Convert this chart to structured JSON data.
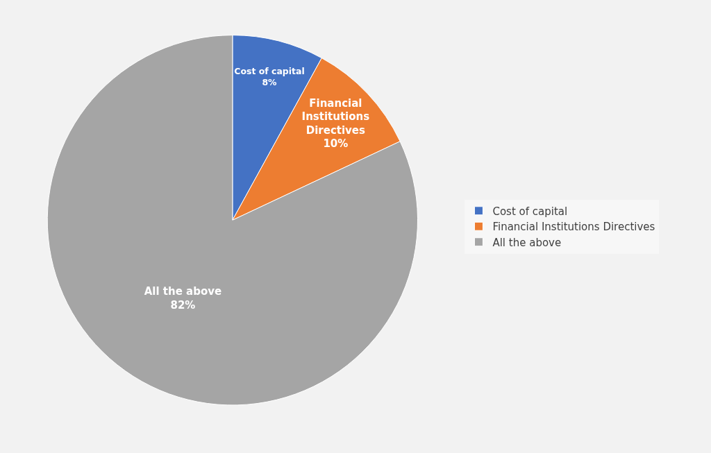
{
  "chart_data": {
    "type": "pie",
    "categories": [
      "Cost of capital",
      "Financial Institutions Directives",
      "All the above"
    ],
    "values": [
      8,
      10,
      82
    ],
    "value_labels": [
      "8%",
      "10%",
      "82%"
    ],
    "colors": [
      "#4472c4",
      "#ed7d31",
      "#a5a5a5"
    ],
    "legend": "right"
  }
}
